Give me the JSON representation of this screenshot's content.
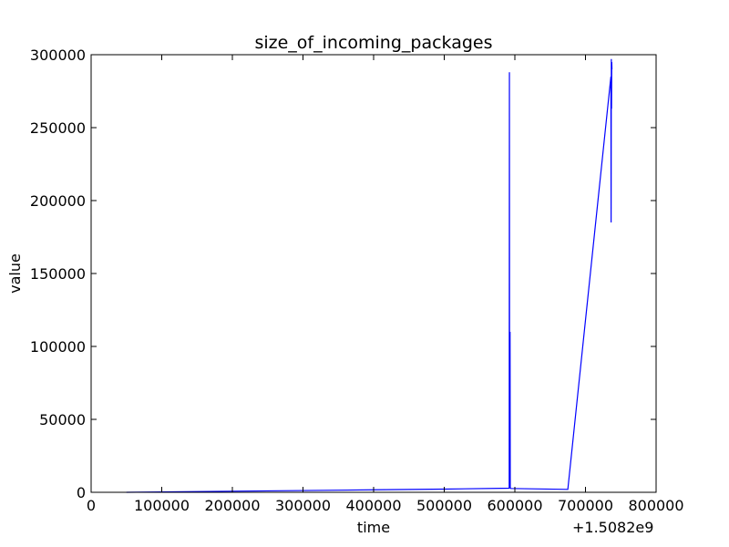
{
  "chart_data": {
    "type": "line",
    "title": "size_of_incoming_packages",
    "xlabel": "time",
    "ylabel": "value",
    "x_offset_label": "+1.5082e9",
    "xlim": [
      0,
      800000
    ],
    "ylim": [
      0,
      300000
    ],
    "x_ticks": [
      0,
      100000,
      200000,
      300000,
      400000,
      500000,
      600000,
      700000,
      800000
    ],
    "y_ticks": [
      0,
      50000,
      100000,
      150000,
      200000,
      250000,
      300000
    ],
    "grid": false,
    "line_color": "#0000ff",
    "series": [
      {
        "x": [
          50000,
          150000,
          300000,
          400000,
          500000,
          592000,
          592300,
          592600,
          592900,
          593200,
          593500,
          593800,
          594000,
          675000,
          736000,
          736300,
          736600,
          736900,
          737200,
          737500
        ],
        "y": [
          0,
          500,
          1200,
          1700,
          2200,
          2800,
          288000,
          3000,
          82000,
          110000,
          3500,
          2800,
          2600,
          2000,
          285000,
          185000,
          297000,
          263000,
          295000,
          290000
        ]
      }
    ]
  }
}
